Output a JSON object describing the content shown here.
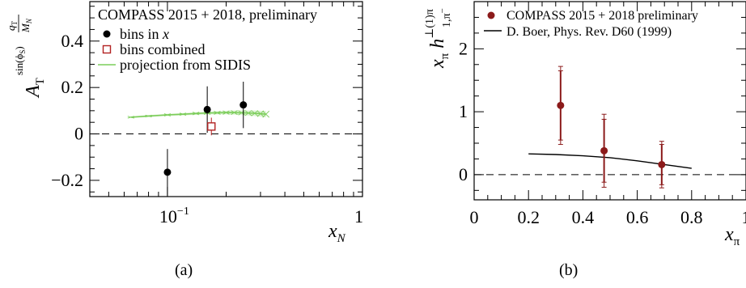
{
  "chart_data": [
    {
      "id": "a",
      "type": "scatter",
      "panel_label": "(a)",
      "xlabel": "x",
      "xlabel_sub": "N",
      "ylabel": "A",
      "ylabel_sub": "T",
      "ylabel_sup_func": "sin(ϕ",
      "ylabel_sup_func_sub": "S",
      "ylabel_sup_func_close": ")",
      "ylabel_frac_num": "q",
      "ylabel_frac_num_sub": "T",
      "ylabel_frac_den": "M",
      "ylabel_frac_den_sub": "N",
      "x_scale": "log",
      "xlim": [
        0.04,
        1.0
      ],
      "ylim": [
        -0.27,
        0.57
      ],
      "x_tick_labels": [
        {
          "value": 0.1,
          "base": "10",
          "exp": "−1"
        },
        {
          "value": 1.0,
          "base": "1",
          "exp": ""
        }
      ],
      "y_ticks": [
        {
          "value": -0.2,
          "label": "−0.2"
        },
        {
          "value": 0.0,
          "label": "0"
        },
        {
          "value": 0.2,
          "label": "0.2"
        },
        {
          "value": 0.4,
          "label": "0.4"
        }
      ],
      "legend_title": "COMPASS 2015 + 2018, preliminary",
      "legend_placement": "top-left",
      "series": [
        {
          "name": "bins in x",
          "marker": "filled-circle",
          "color": "#000000",
          "points": [
            {
              "x": 0.1,
              "y": -0.165,
              "err": 0.1
            },
            {
              "x": 0.16,
              "y": 0.105,
              "err": 0.1
            },
            {
              "x": 0.245,
              "y": 0.125,
              "err": 0.1
            }
          ]
        },
        {
          "name": "bins combined",
          "marker": "open-square",
          "color": "#b22222",
          "points": [
            {
              "x": 0.168,
              "y": 0.032,
              "err": 0.038
            }
          ]
        },
        {
          "name": "projection from SIDIS",
          "marker": "line-band",
          "color": "#7ccd5a",
          "x": [
            0.065,
            0.08,
            0.1,
            0.12,
            0.14,
            0.16,
            0.18,
            0.2,
            0.22,
            0.24,
            0.26,
            0.28,
            0.3,
            0.32
          ],
          "y": [
            0.072,
            0.077,
            0.082,
            0.085,
            0.088,
            0.09,
            0.091,
            0.092,
            0.092,
            0.091,
            0.09,
            0.089,
            0.087,
            0.085
          ],
          "band": [
            0.004,
            0.004,
            0.005,
            0.005,
            0.006,
            0.006,
            0.007,
            0.008,
            0.009,
            0.01,
            0.011,
            0.012,
            0.013,
            0.014
          ]
        }
      ],
      "reference_line": 0
    },
    {
      "id": "b",
      "type": "scatter",
      "panel_label": "(b)",
      "xlabel": "x",
      "xlabel_sub": "π",
      "ylabel_prefix": "x",
      "ylabel_prefix_sub": "π",
      "ylabel_func": "h",
      "ylabel_func_sup": "⊥(1)π",
      "ylabel_func_sub": "1,π",
      "ylabel_func_sup2": "−",
      "xlim": [
        0.0,
        1.0
      ],
      "ylim": [
        -0.4,
        2.75
      ],
      "x_ticks": [
        {
          "value": 0,
          "label": "0"
        },
        {
          "value": 0.2,
          "label": "0.2"
        },
        {
          "value": 0.4,
          "label": "0.4"
        },
        {
          "value": 0.6,
          "label": "0.6"
        },
        {
          "value": 0.8,
          "label": "0.8"
        },
        {
          "value": 1.0,
          "label": "1"
        }
      ],
      "y_ticks": [
        {
          "value": 0,
          "label": "0"
        },
        {
          "value": 1,
          "label": "1"
        },
        {
          "value": 2,
          "label": "2"
        }
      ],
      "legend_placement": "top-left",
      "series": [
        {
          "name": "COMPASS 2015 + 2018 preliminary",
          "marker": "filled-circle",
          "color": "#8b1a1a",
          "points": [
            {
              "x": 0.318,
              "y": 1.1,
              "err_stat": 0.55,
              "err_tot": 0.62
            },
            {
              "x": 0.478,
              "y": 0.38,
              "err_stat": 0.5,
              "err_tot": 0.58
            },
            {
              "x": 0.69,
              "y": 0.16,
              "err_stat": 0.32,
              "err_tot": 0.37
            }
          ]
        },
        {
          "name": "D. Boer, Phys. Rev. D60 (1999)",
          "marker": "line",
          "color": "#000000",
          "x": [
            0.2,
            0.3,
            0.4,
            0.5,
            0.6,
            0.7,
            0.8
          ],
          "y": [
            0.33,
            0.32,
            0.3,
            0.27,
            0.22,
            0.16,
            0.1
          ]
        }
      ],
      "reference_line": 0
    }
  ]
}
